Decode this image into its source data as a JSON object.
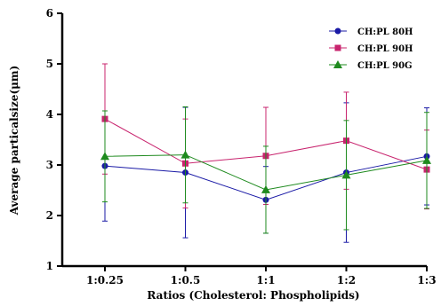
{
  "chart_data": {
    "type": "line",
    "title": "",
    "xlabel": "Ratios (Cholesterol: Phospholipids)",
    "ylabel": "Average particalsize(μm)",
    "categories": [
      "1:0.25",
      "1:0.5",
      "1:1",
      "1:2",
      "1:3"
    ],
    "ylim": [
      1,
      6
    ],
    "yticks": [
      "1",
      "2",
      "3",
      "4",
      "5",
      "6"
    ],
    "grid": false,
    "legend_position": "top-right",
    "series": [
      {
        "name": "CH:PL 80H",
        "color": "#1a1aa6",
        "marker": "circle",
        "values": [
          2.98,
          2.85,
          2.31,
          2.85,
          3.17
        ],
        "error": [
          1.09,
          1.29,
          0.66,
          1.38,
          0.96
        ]
      },
      {
        "name": "CH:PL 90H",
        "color": "#c8246e",
        "marker": "square",
        "values": [
          3.91,
          3.03,
          3.18,
          3.48,
          2.91
        ],
        "error": [
          1.09,
          0.88,
          0.96,
          0.96,
          0.78
        ]
      },
      {
        "name": "CH:PL 90G",
        "color": "#1e8a1e",
        "marker": "triangle",
        "values": [
          3.17,
          3.2,
          2.51,
          2.8,
          3.09
        ],
        "error": [
          0.9,
          0.95,
          0.86,
          1.08,
          0.95
        ]
      }
    ]
  }
}
